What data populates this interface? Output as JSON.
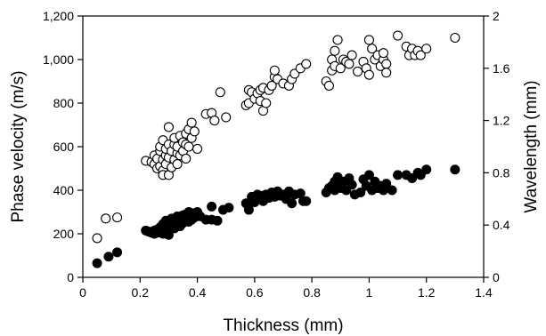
{
  "chart_data": {
    "type": "scatter",
    "xlabel": "Thickness (mm)",
    "ylabel": "Phase velocity (m/s)",
    "ylabel_right": "Wavelength (mm)",
    "xlim": [
      0,
      1.4
    ],
    "ylim": [
      0,
      1200
    ],
    "ylim_right": [
      0,
      2
    ],
    "x_ticks": [
      "0",
      "0.2",
      "0.4",
      "0.6",
      "0.8",
      "1",
      "1.2",
      "1.4"
    ],
    "y_ticks": [
      "0",
      "200",
      "400",
      "600",
      "800",
      "1,000",
      "1,200"
    ],
    "y_right_ticks": [
      "0",
      "0.4",
      "0.8",
      "1.2",
      "1.6",
      "2"
    ],
    "grid": false,
    "series": [
      {
        "style": "open",
        "axis": "left",
        "points": [
          [
            0.05,
            180
          ],
          [
            0.08,
            270
          ],
          [
            0.12,
            275
          ],
          [
            0.22,
            535
          ],
          [
            0.24,
            530
          ],
          [
            0.25,
            520
          ],
          [
            0.25,
            560
          ],
          [
            0.26,
            545
          ],
          [
            0.26,
            500
          ],
          [
            0.27,
            580
          ],
          [
            0.27,
            510
          ],
          [
            0.27,
            600
          ],
          [
            0.28,
            490
          ],
          [
            0.28,
            470
          ],
          [
            0.28,
            540
          ],
          [
            0.28,
            630
          ],
          [
            0.29,
            560
          ],
          [
            0.29,
            590
          ],
          [
            0.29,
            520
          ],
          [
            0.3,
            470
          ],
          [
            0.3,
            610
          ],
          [
            0.3,
            690
          ],
          [
            0.3,
            550
          ],
          [
            0.31,
            505
          ],
          [
            0.31,
            580
          ],
          [
            0.32,
            540
          ],
          [
            0.32,
            610
          ],
          [
            0.32,
            640
          ],
          [
            0.33,
            570
          ],
          [
            0.33,
            520
          ],
          [
            0.33,
            600
          ],
          [
            0.34,
            650
          ],
          [
            0.34,
            560
          ],
          [
            0.35,
            620
          ],
          [
            0.35,
            580
          ],
          [
            0.36,
            610
          ],
          [
            0.36,
            660
          ],
          [
            0.36,
            545
          ],
          [
            0.37,
            680
          ],
          [
            0.37,
            600
          ],
          [
            0.38,
            710
          ],
          [
            0.38,
            640
          ],
          [
            0.39,
            670
          ],
          [
            0.4,
            590
          ],
          [
            0.43,
            750
          ],
          [
            0.45,
            755
          ],
          [
            0.46,
            720
          ],
          [
            0.48,
            850
          ],
          [
            0.5,
            735
          ],
          [
            0.57,
            790
          ],
          [
            0.58,
            800
          ],
          [
            0.58,
            860
          ],
          [
            0.59,
            850
          ],
          [
            0.6,
            820
          ],
          [
            0.61,
            845
          ],
          [
            0.62,
            860
          ],
          [
            0.62,
            810
          ],
          [
            0.63,
            765
          ],
          [
            0.63,
            870
          ],
          [
            0.64,
            800
          ],
          [
            0.65,
            860
          ],
          [
            0.66,
            880
          ],
          [
            0.67,
            920
          ],
          [
            0.67,
            950
          ],
          [
            0.68,
            910
          ],
          [
            0.7,
            890
          ],
          [
            0.72,
            880
          ],
          [
            0.73,
            910
          ],
          [
            0.74,
            935
          ],
          [
            0.76,
            960
          ],
          [
            0.78,
            980
          ],
          [
            0.85,
            900
          ],
          [
            0.86,
            880
          ],
          [
            0.87,
            950
          ],
          [
            0.87,
            1000
          ],
          [
            0.88,
            970
          ],
          [
            0.88,
            1040
          ],
          [
            0.89,
            1090
          ],
          [
            0.9,
            960
          ],
          [
            0.91,
            1000
          ],
          [
            0.92,
            990
          ],
          [
            0.93,
            980
          ],
          [
            0.94,
            1020
          ],
          [
            0.96,
            945
          ],
          [
            0.98,
            990
          ],
          [
            0.99,
            960
          ],
          [
            1.0,
            930
          ],
          [
            1.0,
            1090
          ],
          [
            1.01,
            1050
          ],
          [
            1.02,
            1000
          ],
          [
            1.03,
            1020
          ],
          [
            1.04,
            970
          ],
          [
            1.05,
            1000
          ],
          [
            1.06,
            980
          ],
          [
            1.05,
            1030
          ],
          [
            1.06,
            940
          ],
          [
            1.1,
            1110
          ],
          [
            1.13,
            1060
          ],
          [
            1.14,
            1020
          ],
          [
            1.15,
            1050
          ],
          [
            1.16,
            1020
          ],
          [
            1.17,
            1040
          ],
          [
            1.18,
            1020
          ],
          [
            1.2,
            1050
          ],
          [
            1.3,
            1100
          ]
        ]
      },
      {
        "style": "filled",
        "axis": "left",
        "points": [
          [
            0.05,
            65
          ],
          [
            0.09,
            95
          ],
          [
            0.12,
            115
          ],
          [
            0.22,
            215
          ],
          [
            0.23,
            210
          ],
          [
            0.24,
            205
          ],
          [
            0.25,
            215
          ],
          [
            0.25,
            200
          ],
          [
            0.26,
            220
          ],
          [
            0.26,
            205
          ],
          [
            0.27,
            230
          ],
          [
            0.27,
            210
          ],
          [
            0.28,
            225
          ],
          [
            0.28,
            245
          ],
          [
            0.28,
            200
          ],
          [
            0.29,
            235
          ],
          [
            0.29,
            215
          ],
          [
            0.29,
            260
          ],
          [
            0.3,
            220
          ],
          [
            0.3,
            240
          ],
          [
            0.3,
            195
          ],
          [
            0.31,
            250
          ],
          [
            0.31,
            230
          ],
          [
            0.31,
            270
          ],
          [
            0.32,
            240
          ],
          [
            0.32,
            255
          ],
          [
            0.32,
            225
          ],
          [
            0.33,
            260
          ],
          [
            0.33,
            245
          ],
          [
            0.33,
            280
          ],
          [
            0.34,
            250
          ],
          [
            0.34,
            270
          ],
          [
            0.34,
            235
          ],
          [
            0.35,
            265
          ],
          [
            0.35,
            285
          ],
          [
            0.35,
            250
          ],
          [
            0.36,
            275
          ],
          [
            0.36,
            260
          ],
          [
            0.36,
            290
          ],
          [
            0.37,
            270
          ],
          [
            0.37,
            300
          ],
          [
            0.37,
            255
          ],
          [
            0.38,
            280
          ],
          [
            0.38,
            265
          ],
          [
            0.38,
            295
          ],
          [
            0.39,
            275
          ],
          [
            0.39,
            290
          ],
          [
            0.4,
            285
          ],
          [
            0.4,
            300
          ],
          [
            0.41,
            280
          ],
          [
            0.43,
            265
          ],
          [
            0.45,
            265
          ],
          [
            0.45,
            325
          ],
          [
            0.47,
            260
          ],
          [
            0.49,
            310
          ],
          [
            0.51,
            320
          ],
          [
            0.57,
            340
          ],
          [
            0.58,
            310
          ],
          [
            0.59,
            370
          ],
          [
            0.6,
            345
          ],
          [
            0.61,
            380
          ],
          [
            0.62,
            360
          ],
          [
            0.63,
            375
          ],
          [
            0.63,
            350
          ],
          [
            0.64,
            380
          ],
          [
            0.65,
            365
          ],
          [
            0.66,
            390
          ],
          [
            0.67,
            370
          ],
          [
            0.68,
            395
          ],
          [
            0.69,
            375
          ],
          [
            0.7,
            380
          ],
          [
            0.71,
            360
          ],
          [
            0.72,
            395
          ],
          [
            0.73,
            340
          ],
          [
            0.74,
            380
          ],
          [
            0.76,
            385
          ],
          [
            0.77,
            350
          ],
          [
            0.78,
            350
          ],
          [
            0.85,
            390
          ],
          [
            0.86,
            410
          ],
          [
            0.87,
            420
          ],
          [
            0.88,
            400
          ],
          [
            0.88,
            440
          ],
          [
            0.89,
            430
          ],
          [
            0.89,
            460
          ],
          [
            0.9,
            410
          ],
          [
            0.91,
            440
          ],
          [
            0.92,
            400
          ],
          [
            0.93,
            455
          ],
          [
            0.94,
            425
          ],
          [
            0.95,
            380
          ],
          [
            0.97,
            390
          ],
          [
            0.98,
            450
          ],
          [
            0.99,
            420
          ],
          [
            1.0,
            470
          ],
          [
            1.01,
            400
          ],
          [
            1.02,
            440
          ],
          [
            1.03,
            410
          ],
          [
            1.04,
            420
          ],
          [
            1.05,
            400
          ],
          [
            1.06,
            430
          ],
          [
            1.08,
            400
          ],
          [
            1.1,
            470
          ],
          [
            1.13,
            470
          ],
          [
            1.15,
            455
          ],
          [
            1.17,
            480
          ],
          [
            1.18,
            470
          ],
          [
            1.2,
            495
          ],
          [
            1.3,
            495
          ]
        ]
      }
    ]
  }
}
